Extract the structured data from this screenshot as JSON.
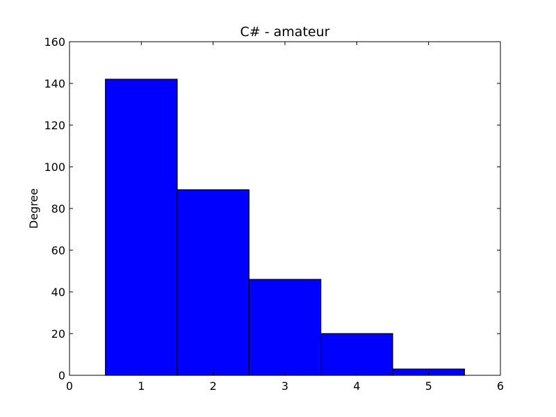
{
  "chart_data": {
    "type": "bar",
    "title": "C# - amateur",
    "xlabel": "",
    "ylabel": "Degree",
    "xlim": [
      0,
      6
    ],
    "ylim": [
      0,
      160
    ],
    "xticks": [
      0,
      1,
      2,
      3,
      4,
      5,
      6
    ],
    "yticks": [
      0,
      20,
      40,
      60,
      80,
      100,
      120,
      140,
      160
    ],
    "categories": [
      1,
      2,
      3,
      4,
      5
    ],
    "values": [
      142,
      89,
      46,
      20,
      3
    ],
    "bar_width": 1,
    "bar_color": "#0000ff",
    "edge_color": "#000000",
    "grid": false
  }
}
